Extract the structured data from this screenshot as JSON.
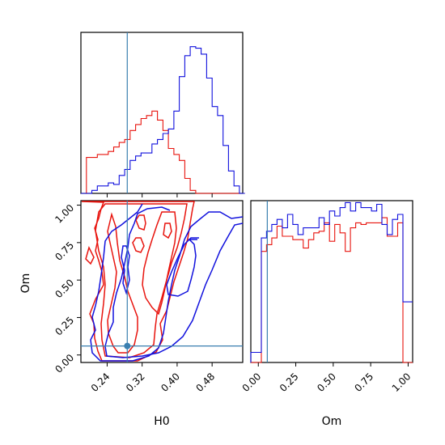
{
  "chart_data": {
    "type": "corner",
    "parameters": [
      "H0",
      "Om"
    ],
    "xlabel": "H0",
    "ylabel": "Om",
    "om_xlabel": "Om",
    "h0_ticks": [
      "0.24",
      "0.32",
      "0.40",
      "0.48"
    ],
    "h0_tick_values": [
      0.24,
      0.32,
      0.4,
      0.48
    ],
    "om_ticks": [
      "0.00",
      "0.25",
      "0.50",
      "0.75",
      "1.00"
    ],
    "om_tick_values": [
      0.0,
      0.25,
      0.5,
      0.75,
      1.0
    ],
    "h0_range": [
      0.18,
      0.55
    ],
    "om_range": [
      -0.05,
      1.03
    ],
    "truth": {
      "H0": 0.286,
      "Om": 0.06,
      "color": "#3a7fb0"
    },
    "series_colors": {
      "red": "#e8140e",
      "blue": "#1111dd"
    },
    "h0_hist": {
      "bin_edges": [
        0.18,
        0.1925,
        0.205,
        0.2175,
        0.23,
        0.2425,
        0.255,
        0.2675,
        0.28,
        0.2925,
        0.305,
        0.3175,
        0.33,
        0.3425,
        0.355,
        0.3675,
        0.38,
        0.3925,
        0.405,
        0.4175,
        0.43,
        0.4425,
        0.455,
        0.4675,
        0.48,
        0.4925,
        0.505,
        0.5175,
        0.53,
        0.5425,
        0.555
      ],
      "red": [
        0.0,
        0.24,
        0.24,
        0.26,
        0.26,
        0.28,
        0.31,
        0.34,
        0.36,
        0.42,
        0.46,
        0.5,
        0.52,
        0.55,
        0.49,
        0.42,
        0.3,
        0.26,
        0.22,
        0.1,
        0.02,
        0.0,
        0,
        0,
        0,
        0,
        0,
        0,
        0,
        0
      ],
      "blue": [
        0,
        0.0,
        0.02,
        0.05,
        0.05,
        0.07,
        0.06,
        0.12,
        0.16,
        0.22,
        0.25,
        0.27,
        0.27,
        0.33,
        0.36,
        0.4,
        0.43,
        0.55,
        0.78,
        0.92,
        0.98,
        0.97,
        0.93,
        0.77,
        0.58,
        0.52,
        0.32,
        0.15,
        0.05,
        0.0
      ]
    },
    "om_hist": {
      "bin_edges": [
        -0.05,
        -0.015,
        0.02,
        0.055,
        0.09,
        0.125,
        0.16,
        0.195,
        0.23,
        0.265,
        0.3,
        0.335,
        0.37,
        0.405,
        0.44,
        0.475,
        0.51,
        0.545,
        0.58,
        0.615,
        0.65,
        0.685,
        0.72,
        0.755,
        0.79,
        0.825,
        0.86,
        0.895,
        0.93,
        0.965,
        1.0,
        1.03
      ],
      "red": [
        0,
        0,
        0.66,
        0.7,
        0.74,
        0.81,
        0.75,
        0.75,
        0.73,
        0.73,
        0.68,
        0.73,
        0.77,
        0.78,
        0.83,
        0.72,
        0.82,
        0.77,
        0.66,
        0.8,
        0.83,
        0.82,
        0.83,
        0.83,
        0.83,
        0.86,
        0.75,
        0.75,
        0.83,
        0.0,
        0
      ],
      "blue": [
        0.06,
        0.06,
        0.74,
        0.78,
        0.82,
        0.85,
        0.8,
        0.88,
        0.82,
        0.76,
        0.8,
        0.8,
        0.8,
        0.86,
        0.82,
        0.9,
        0.87,
        0.92,
        0.95,
        0.9,
        0.95,
        0.92,
        0.92,
        0.9,
        0.94,
        0.82,
        0.76,
        0.85,
        0.88,
        0.36,
        0.36
      ]
    }
  }
}
